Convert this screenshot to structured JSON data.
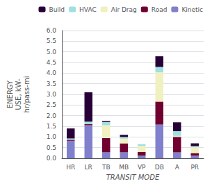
{
  "chart_data": {
    "type": "bar",
    "stacked": true,
    "categories": [
      "HR",
      "LR",
      "TB",
      "MB",
      "VP",
      "DB",
      "A",
      "PR"
    ],
    "series": [
      {
        "name": "Kinetic",
        "color": "#8080cc",
        "values": [
          0.82,
          1.55,
          0.28,
          0.28,
          0.12,
          1.58,
          0.28,
          0.12
        ]
      },
      {
        "name": "Road",
        "color": "#700030",
        "values": [
          0.05,
          0.05,
          0.67,
          0.42,
          0.18,
          1.08,
          0.72,
          0.12
        ]
      },
      {
        "name": "Air Drag",
        "color": "#f0f0c0",
        "values": [
          0.0,
          0.0,
          0.6,
          0.22,
          0.28,
          1.38,
          0.05,
          0.28
        ]
      },
      {
        "name": "HVAC",
        "color": "#a0e0e0",
        "values": [
          0.06,
          0.12,
          0.15,
          0.08,
          0.08,
          0.25,
          0.22,
          0.05
        ]
      },
      {
        "name": "Build",
        "color": "#280038",
        "values": [
          0.47,
          1.38,
          0.05,
          0.1,
          0.0,
          0.5,
          0.42,
          0.13
        ]
      }
    ],
    "ylim": [
      0,
      6.0
    ],
    "yticks": [
      {
        "value": 0.0,
        "label": "0.0"
      },
      0.5,
      {
        "value": 1.0,
        "label": "1.0"
      },
      1.5,
      {
        "value": 2.0,
        "label": "2.0"
      },
      2.5,
      {
        "value": 3.0,
        "label": "3.0"
      },
      3.5,
      {
        "value": 4.0,
        "label": "4.0"
      },
      4.5,
      {
        "value": 5.0,
        "label": "5.0"
      },
      5.5,
      {
        "value": 6.0,
        "label": "6.0"
      }
    ],
    "ylabel": "ENERGY\nUSE, kW-\nhr/pass-mi",
    "xlabel": "TRANSIT MODE",
    "grid": true,
    "legend": "upper right"
  }
}
